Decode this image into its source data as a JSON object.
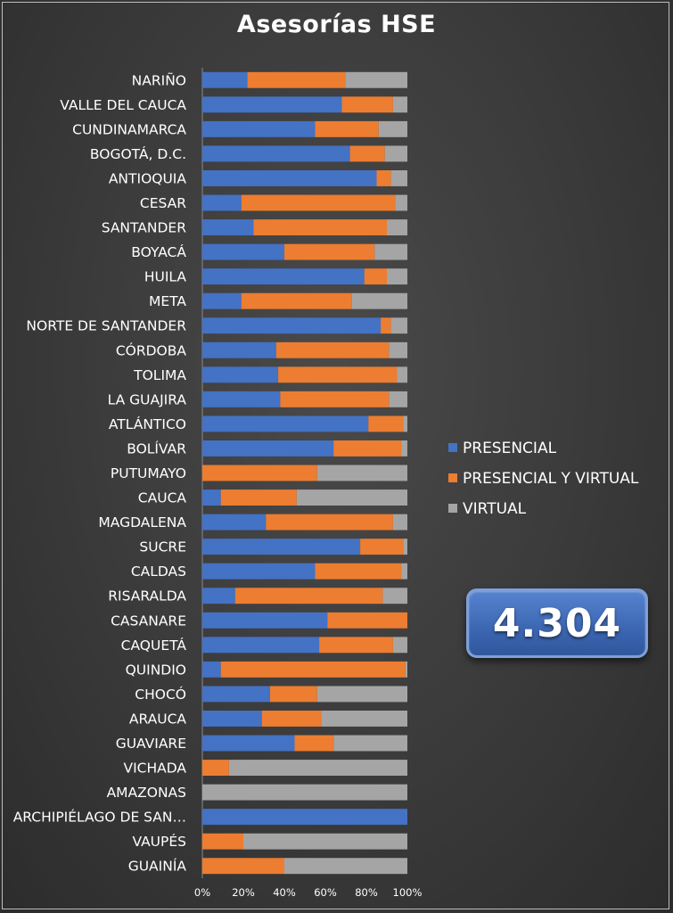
{
  "chart_data": {
    "type": "bar",
    "orientation": "horizontal",
    "stacked": "percent",
    "title": "Asesorías HSE",
    "categories": [
      "NARIÑO",
      "VALLE DEL CAUCA",
      "CUNDINAMARCA",
      "BOGOTÁ, D.C.",
      "ANTIOQUIA",
      "CESAR",
      "SANTANDER",
      "BOYACÁ",
      "HUILA",
      "META",
      "NORTE DE SANTANDER",
      "CÓRDOBA",
      "TOLIMA",
      "LA GUAJIRA",
      "ATLÁNTICO",
      "BOLÍVAR",
      "PUTUMAYO",
      "CAUCA",
      "MAGDALENA",
      "SUCRE",
      "CALDAS",
      "RISARALDA",
      "CASANARE",
      "CAQUETÁ",
      "QUINDIO",
      "CHOCÓ",
      "ARAUCA",
      "GUAVIARE",
      "VICHADA",
      "AMAZONAS",
      "ARCHIPIÉLAGO DE SAN…",
      "VAUPÉS",
      "GUAINÍA"
    ],
    "series": [
      {
        "name": "PRESENCIAL",
        "color": "#4472c4",
        "values": [
          22,
          68,
          55,
          72,
          85,
          19,
          25,
          40,
          79,
          19,
          87,
          36,
          37,
          38,
          81,
          64,
          0,
          9,
          31,
          77,
          55,
          16,
          61,
          57,
          9,
          33,
          29,
          45,
          0,
          0,
          100,
          0,
          0
        ]
      },
      {
        "name": "PRESENCIAL Y VIRTUAL",
        "color": "#ed7d31",
        "values": [
          48,
          25,
          31,
          17,
          7,
          75,
          65,
          44,
          11,
          54,
          5,
          55,
          58,
          53,
          17,
          33,
          56,
          37,
          62,
          21,
          42,
          72,
          39,
          36,
          90,
          23,
          29,
          19,
          13,
          0,
          0,
          20,
          40
        ]
      },
      {
        "name": "VIRTUAL",
        "color": "#a5a5a5",
        "values": [
          30,
          7,
          14,
          11,
          8,
          6,
          10,
          16,
          10,
          27,
          8,
          9,
          5,
          9,
          2,
          3,
          44,
          54,
          7,
          2,
          3,
          12,
          0,
          7,
          1,
          44,
          42,
          36,
          87,
          100,
          0,
          80,
          60
        ]
      }
    ],
    "x_ticks": [
      "0%",
      "20%",
      "40%",
      "60%",
      "80%",
      "100%"
    ],
    "xlim": [
      0,
      100
    ],
    "legend_position": "right"
  },
  "kpi": {
    "value": "4.304"
  }
}
